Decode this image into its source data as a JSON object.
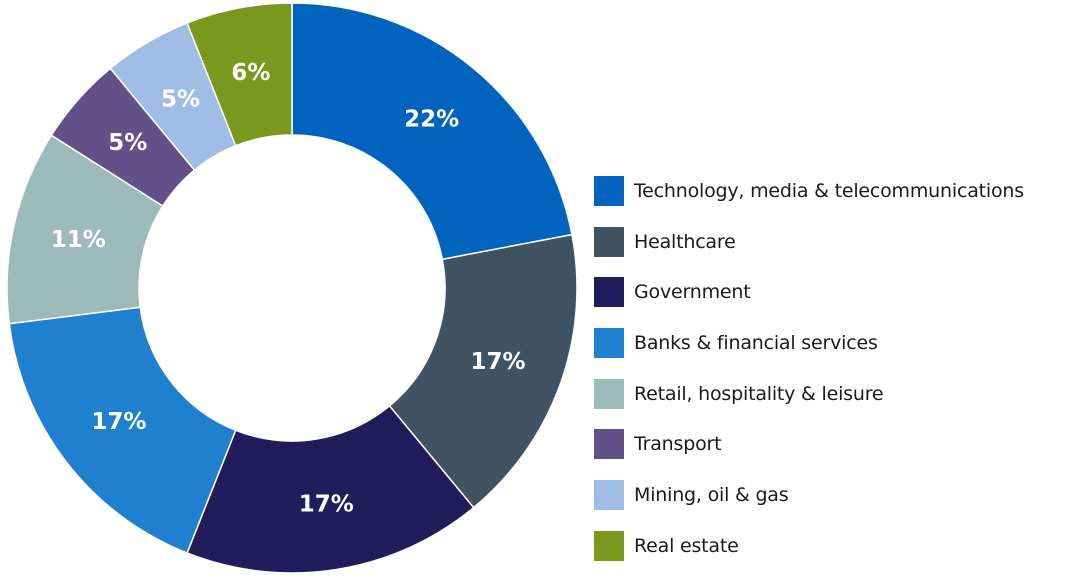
{
  "chart_data": {
    "type": "pie",
    "donut": true,
    "legend_position": "right",
    "slices": [
      {
        "label": "Technology, media & telecommunications",
        "value": 22,
        "display": "22%",
        "color": "#0063be"
      },
      {
        "label": "Healthcare",
        "value": 17,
        "display": "17%",
        "color": "#3f5363"
      },
      {
        "label": "Government",
        "value": 17,
        "display": "17%",
        "color": "#221c5c"
      },
      {
        "label": "Banks & financial services",
        "value": 17,
        "display": "17%",
        "color": "#1f80d0"
      },
      {
        "label": "Retail, hospitality & leisure",
        "value": 11,
        "display": "11%",
        "color": "#9cbabc"
      },
      {
        "label": "Transport",
        "value": 5,
        "display": "5%",
        "color": "#625189"
      },
      {
        "label": "Mining, oil & gas",
        "value": 5,
        "display": "5%",
        "color": "#9fbce6"
      },
      {
        "label": "Real estate",
        "value": 6,
        "display": "6%",
        "color": "#78991e"
      }
    ]
  }
}
